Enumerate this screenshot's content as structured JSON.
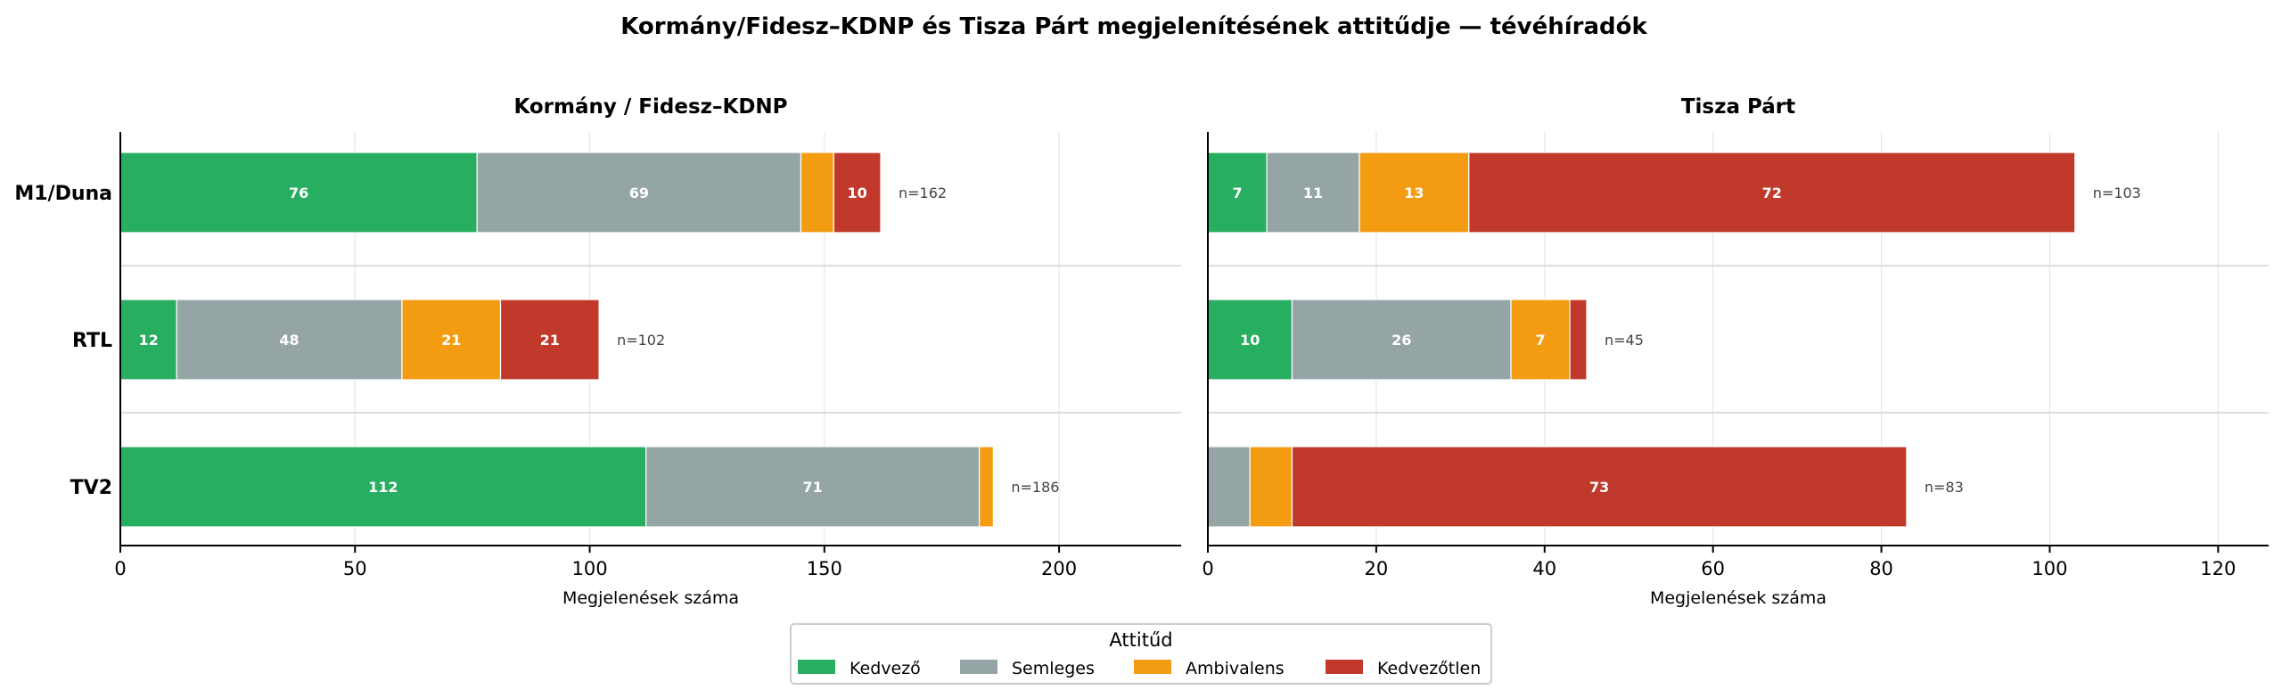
{
  "chart_data": {
    "type": "bar",
    "orientation": "horizontal-stacked",
    "title": "Kormány/Fidesz–KDNP és Tisza Párt megjelenítésének attitűdje — tévéhíradók",
    "legend": {
      "title": "Attitűd",
      "placement": "bottom-center",
      "entries": [
        {
          "name": "Kedvező",
          "color": "#27ae60"
        },
        {
          "name": "Semleges",
          "color": "#95a5a6"
        },
        {
          "name": "Ambivalens",
          "color": "#f39c12"
        },
        {
          "name": "Kedvezőtlen",
          "color": "#c0392b"
        }
      ]
    },
    "panels": [
      {
        "title": "Kormány / Fidesz–KDNP",
        "xlabel": "Megjelenések száma",
        "xlim": [
          0,
          226
        ],
        "xticks": [
          0,
          50,
          100,
          150,
          200
        ],
        "grid": true,
        "show_categories": true,
        "categories": [
          "M1/Duna",
          "RTL",
          "TV2"
        ],
        "series": [
          {
            "name": "Kedvező",
            "values": [
              76,
              12,
              112
            ]
          },
          {
            "name": "Semleges",
            "values": [
              69,
              48,
              71
            ]
          },
          {
            "name": "Ambivalens",
            "values": [
              7,
              21,
              3
            ]
          },
          {
            "name": "Kedvezőtlen",
            "values": [
              10,
              21,
              0
            ]
          }
        ],
        "labels_shown": [
          [
            true,
            true,
            false,
            true
          ],
          [
            true,
            true,
            true,
            true
          ],
          [
            true,
            true,
            false,
            false
          ]
        ],
        "totals": [
          "n=162",
          "n=102",
          "n=186"
        ]
      },
      {
        "title": "Tisza Párt",
        "xlabel": "Megjelenések száma",
        "xlim": [
          0,
          126
        ],
        "xticks": [
          0,
          20,
          40,
          60,
          80,
          100,
          120
        ],
        "grid": true,
        "show_categories": false,
        "categories": [
          "M1/Duna",
          "RTL",
          "TV2"
        ],
        "series": [
          {
            "name": "Kedvező",
            "values": [
              7,
              10,
              0
            ]
          },
          {
            "name": "Semleges",
            "values": [
              11,
              26,
              5
            ]
          },
          {
            "name": "Ambivalens",
            "values": [
              13,
              7,
              5
            ]
          },
          {
            "name": "Kedvezőtlen",
            "values": [
              72,
              2,
              73
            ]
          }
        ],
        "labels_shown": [
          [
            true,
            true,
            true,
            true
          ],
          [
            true,
            true,
            true,
            false
          ],
          [
            false,
            false,
            false,
            true
          ]
        ],
        "totals": [
          "n=103",
          "n=45",
          "n=83"
        ]
      }
    ]
  }
}
